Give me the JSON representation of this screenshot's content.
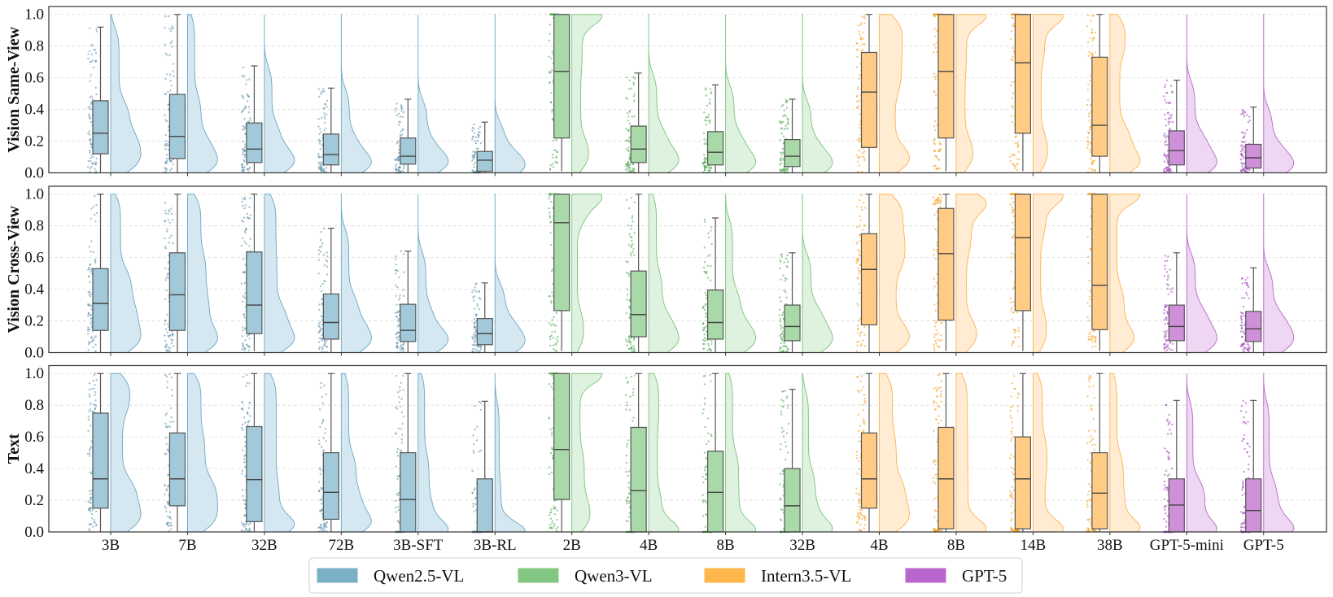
{
  "chart_data": {
    "type": "box",
    "subtype": "raincloud (box + jittered points + half violin)",
    "categories": [
      "3B",
      "7B",
      "32B",
      "72B",
      "3B-SFT",
      "3B-RL",
      "2B",
      "4B",
      "8B",
      "32B",
      "4B",
      "8B",
      "14B",
      "38B",
      "GPT-5-mini",
      "GPT-5"
    ],
    "category_groups": [
      0,
      0,
      0,
      0,
      0,
      0,
      1,
      1,
      1,
      1,
      2,
      2,
      2,
      2,
      3,
      3
    ],
    "highlighted_categories": [
      "3B-SFT",
      "3B-RL"
    ],
    "highlight_color": "#1f6fd0",
    "legend": {
      "placement": "bottom-center",
      "entries": [
        {
          "name": "Qwen2.5-VL",
          "color": "#7bafc6",
          "box": "#a2c9d9",
          "violin": "#d5e8f1",
          "stroke": "#6aa8c2",
          "point": "#5b8fa8"
        },
        {
          "name": "Qwen3-VL",
          "color": "#82c882",
          "box": "#a9d9a9",
          "violin": "#dff1df",
          "stroke": "#7cc47c",
          "point": "#4fa84f"
        },
        {
          "name": "Intern3.5-VL",
          "color": "#ffb64c",
          "box": "#ffcb85",
          "violin": "#ffecd3",
          "stroke": "#ffb24a",
          "point": "#f59a16"
        },
        {
          "name": "GPT-5",
          "color": "#bb66cc",
          "box": "#cf90da",
          "violin": "#eed7f2",
          "stroke": "#bb66cc",
          "point": "#a040b8"
        }
      ]
    },
    "ylim": [
      0,
      1.05
    ],
    "yticks": [
      "0.0",
      "0.2",
      "0.4",
      "0.6",
      "0.8",
      "1.0"
    ],
    "grid": "y dashed",
    "stats_order": [
      "whisker_low",
      "q1",
      "median",
      "q3",
      "whisker_high"
    ],
    "panels": [
      {
        "ylabel": "Vision Same-View",
        "stats": [
          [
            0,
            0.12,
            0.25,
            0.455,
            0.92
          ],
          [
            0,
            0.09,
            0.23,
            0.495,
            1.0
          ],
          [
            0,
            0.065,
            0.15,
            0.315,
            0.675
          ],
          [
            0,
            0.05,
            0.115,
            0.245,
            0.535
          ],
          [
            0,
            0.055,
            0.105,
            0.22,
            0.465
          ],
          [
            0,
            0.01,
            0.08,
            0.135,
            0.32
          ],
          [
            0.01,
            0.22,
            0.64,
            1.0,
            1.0
          ],
          [
            0,
            0.065,
            0.15,
            0.295,
            0.63
          ],
          [
            0,
            0.05,
            0.13,
            0.26,
            0.555
          ],
          [
            0,
            0.04,
            0.105,
            0.21,
            0.465
          ],
          [
            0,
            0.16,
            0.51,
            0.76,
            1.0
          ],
          [
            0.01,
            0.22,
            0.64,
            1.0,
            1.0
          ],
          [
            0.01,
            0.25,
            0.695,
            1.0,
            1.0
          ],
          [
            0,
            0.105,
            0.3,
            0.73,
            1.0
          ],
          [
            0,
            0.05,
            0.14,
            0.265,
            0.585
          ],
          [
            0,
            0.03,
            0.095,
            0.18,
            0.415
          ]
        ]
      },
      {
        "ylabel": "Vision Cross-View",
        "stats": [
          [
            0,
            0.14,
            0.31,
            0.53,
            1.0
          ],
          [
            0,
            0.14,
            0.365,
            0.63,
            1.0
          ],
          [
            0.01,
            0.12,
            0.3,
            0.635,
            1.0
          ],
          [
            0,
            0.085,
            0.19,
            0.37,
            0.785
          ],
          [
            0,
            0.07,
            0.14,
            0.305,
            0.64
          ],
          [
            0,
            0.05,
            0.12,
            0.215,
            0.44
          ],
          [
            0.01,
            0.265,
            0.82,
            1.0,
            1.0
          ],
          [
            0,
            0.1,
            0.24,
            0.515,
            1.0
          ],
          [
            0,
            0.085,
            0.19,
            0.395,
            0.85
          ],
          [
            0,
            0.075,
            0.165,
            0.3,
            0.63
          ],
          [
            0,
            0.175,
            0.525,
            0.75,
            1.0
          ],
          [
            0.01,
            0.205,
            0.625,
            0.91,
            1.0
          ],
          [
            0.01,
            0.265,
            0.725,
            1.0,
            1.0
          ],
          [
            0.01,
            0.145,
            0.425,
            1.0,
            1.0
          ],
          [
            0,
            0.075,
            0.165,
            0.3,
            0.63
          ],
          [
            0,
            0.07,
            0.15,
            0.26,
            0.535
          ]
        ]
      },
      {
        "ylabel": "Text",
        "stats": [
          [
            0,
            0.15,
            0.335,
            0.75,
            1.0
          ],
          [
            0,
            0.165,
            0.335,
            0.625,
            1.0
          ],
          [
            0,
            0.065,
            0.33,
            0.665,
            1.0
          ],
          [
            0,
            0.08,
            0.25,
            0.5,
            1.0
          ],
          [
            0,
            0,
            0.205,
            0.5,
            1.0
          ],
          [
            0,
            0,
            0,
            0.335,
            0.825
          ],
          [
            0,
            0.205,
            0.52,
            1.0,
            1.0
          ],
          [
            0,
            0,
            0.26,
            0.66,
            1.0
          ],
          [
            0,
            0,
            0.25,
            0.51,
            1.0
          ],
          [
            0,
            0,
            0.165,
            0.4,
            0.9
          ],
          [
            0,
            0.15,
            0.335,
            0.625,
            1.0
          ],
          [
            0,
            0.02,
            0.335,
            0.66,
            1.0
          ],
          [
            0,
            0.02,
            0.335,
            0.6,
            1.0
          ],
          [
            0,
            0.02,
            0.245,
            0.5,
            1.0
          ],
          [
            0,
            0,
            0.17,
            0.335,
            0.83
          ],
          [
            0,
            0,
            0.135,
            0.335,
            0.83
          ]
        ]
      }
    ]
  }
}
